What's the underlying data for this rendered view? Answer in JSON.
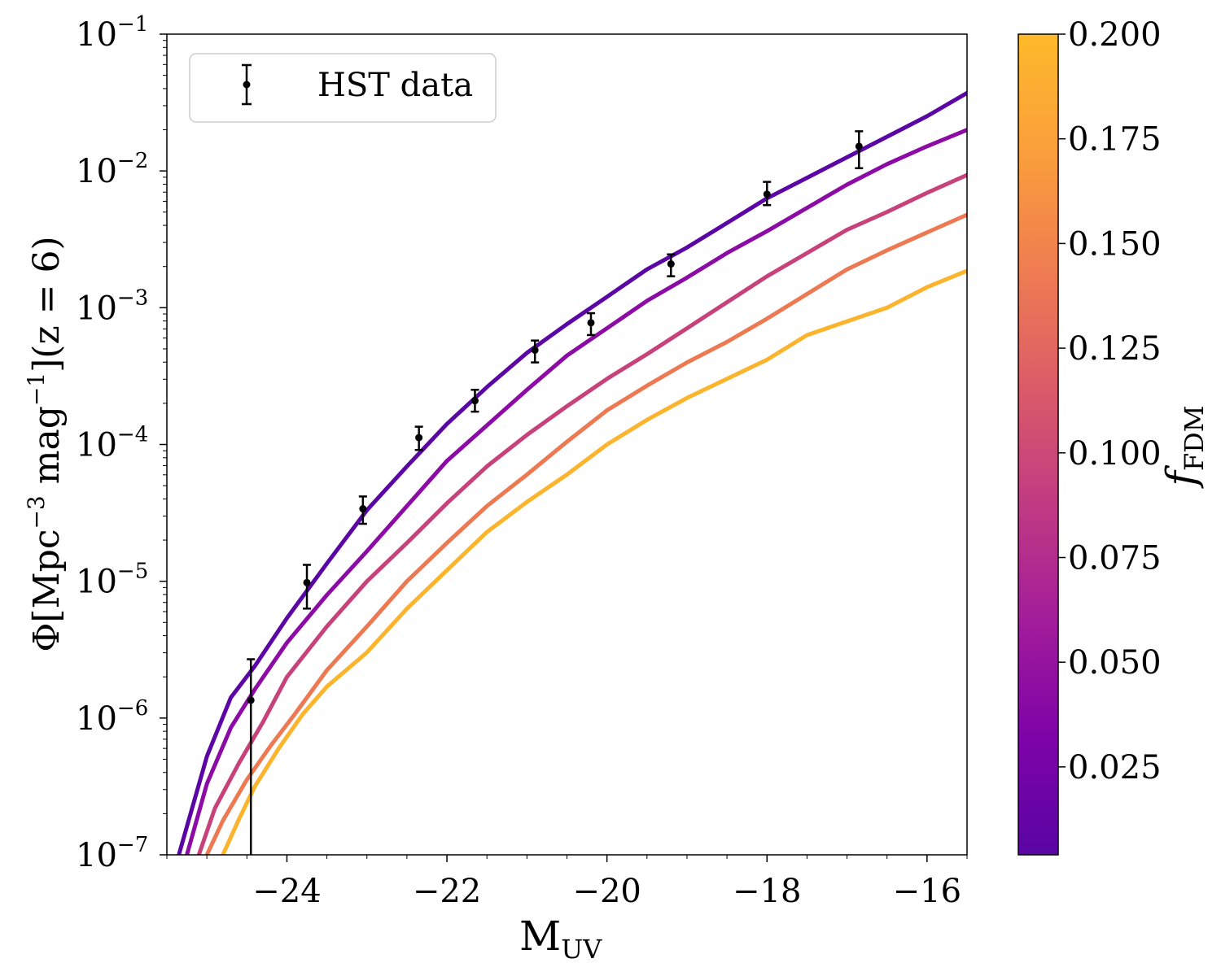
{
  "chart_data": {
    "type": "line",
    "xlabel": "M",
    "xlabel_sub": "UV",
    "ylabel_parts": {
      "pre": "Φ[Mpc",
      "sup1": "−3",
      "mid": " mag",
      "sup2": "−1",
      "post": "](z = 6)"
    },
    "xlim": [
      -25.5,
      -15.5
    ],
    "ylim_log10": [
      -7,
      -1
    ],
    "x_ticks": [
      -24,
      -22,
      -20,
      -18,
      -16
    ],
    "x_tick_labels": [
      "−24",
      "−22",
      "−20",
      "−18",
      "−16"
    ],
    "y_ticks_log10": [
      -7,
      -6,
      -5,
      -4,
      -3,
      -2,
      -1
    ],
    "y_tick_base": "10",
    "y_tick_exponents": [
      "−7",
      "−6",
      "−5",
      "−4",
      "−3",
      "−2",
      "−1"
    ],
    "legend": {
      "label": "HST data",
      "location": "upper-left"
    },
    "colorbar": {
      "label": "f",
      "label_sub": "FDM",
      "range": [
        0.004,
        0.2
      ],
      "ticks": [
        0.025,
        0.05,
        0.075,
        0.1,
        0.125,
        0.15,
        0.175,
        0.2
      ],
      "tick_labels": [
        "0.025",
        "0.050",
        "0.075",
        "0.100",
        "0.125",
        "0.150",
        "0.175",
        "0.200"
      ],
      "colormap": [
        "#0d0887",
        "#5c01a6",
        "#9c179e",
        "#cc4778",
        "#ed7953",
        "#fdb42f",
        "#f0f921"
      ]
    },
    "series": [
      {
        "name": "f_FDM = 0.01",
        "color": "#5a05a4",
        "x": [
          -25.35,
          -25.0,
          -24.7,
          -24.4,
          -24.0,
          -23.5,
          -23.0,
          -22.5,
          -22.0,
          -21.5,
          -21.0,
          -20.5,
          -20.0,
          -19.5,
          -19.0,
          -18.5,
          -18.0,
          -17.5,
          -17.0,
          -16.5,
          -16.0,
          -15.5
        ],
        "y_log10": [
          -7.0,
          -6.28,
          -5.85,
          -5.62,
          -5.27,
          -4.87,
          -4.48,
          -4.16,
          -3.85,
          -3.58,
          -3.33,
          -3.12,
          -2.92,
          -2.72,
          -2.56,
          -2.38,
          -2.2,
          -2.05,
          -1.9,
          -1.75,
          -1.6,
          -1.43
        ]
      },
      {
        "name": "f_FDM = 0.05",
        "color": "#8c0ba5",
        "x": [
          -25.25,
          -25.0,
          -24.7,
          -24.4,
          -24.0,
          -23.5,
          -23.0,
          -22.5,
          -22.0,
          -21.5,
          -21.0,
          -20.5,
          -20.0,
          -19.5,
          -19.0,
          -18.5,
          -18.0,
          -17.5,
          -17.0,
          -16.5,
          -16.0,
          -15.5
        ],
        "y_log10": [
          -7.0,
          -6.48,
          -6.07,
          -5.79,
          -5.45,
          -5.1,
          -4.78,
          -4.45,
          -4.12,
          -3.86,
          -3.6,
          -3.35,
          -3.15,
          -2.95,
          -2.78,
          -2.6,
          -2.44,
          -2.27,
          -2.1,
          -1.95,
          -1.82,
          -1.7
        ]
      },
      {
        "name": "f_FDM = 0.10",
        "color": "#c7417b",
        "x": [
          -25.1,
          -24.9,
          -24.6,
          -24.3,
          -24.0,
          -23.5,
          -23.0,
          -22.5,
          -22.0,
          -21.5,
          -21.0,
          -20.5,
          -20.0,
          -19.5,
          -19.0,
          -18.5,
          -18.0,
          -17.5,
          -17.0,
          -16.5,
          -16.0,
          -15.5
        ],
        "y_log10": [
          -7.0,
          -6.66,
          -6.33,
          -6.03,
          -5.7,
          -5.33,
          -5.0,
          -4.72,
          -4.43,
          -4.16,
          -3.93,
          -3.72,
          -3.52,
          -3.34,
          -3.15,
          -2.96,
          -2.77,
          -2.6,
          -2.43,
          -2.3,
          -2.16,
          -2.03
        ]
      },
      {
        "name": "f_FDM = 0.15",
        "color": "#ed7953",
        "x": [
          -25.0,
          -24.8,
          -24.5,
          -24.2,
          -23.9,
          -23.5,
          -23.0,
          -22.5,
          -22.0,
          -21.5,
          -21.0,
          -20.5,
          -20.0,
          -19.5,
          -19.0,
          -18.5,
          -18.0,
          -17.5,
          -17.0,
          -16.5,
          -16.0,
          -15.5
        ],
        "y_log10": [
          -7.0,
          -6.75,
          -6.45,
          -6.2,
          -5.97,
          -5.65,
          -5.33,
          -5.0,
          -4.72,
          -4.45,
          -4.22,
          -3.98,
          -3.75,
          -3.57,
          -3.4,
          -3.25,
          -3.08,
          -2.9,
          -2.72,
          -2.58,
          -2.45,
          -2.32
        ]
      },
      {
        "name": "f_FDM = 0.20",
        "color": "#fcb42c",
        "x": [
          -24.8,
          -24.6,
          -24.4,
          -24.1,
          -23.8,
          -23.5,
          -23.0,
          -22.5,
          -22.0,
          -21.5,
          -21.0,
          -20.5,
          -20.0,
          -19.5,
          -19.0,
          -18.5,
          -18.0,
          -17.5,
          -17.0,
          -16.5,
          -16.0,
          -15.5
        ],
        "y_log10": [
          -7.0,
          -6.74,
          -6.5,
          -6.22,
          -5.97,
          -5.77,
          -5.52,
          -5.2,
          -4.92,
          -4.64,
          -4.42,
          -4.22,
          -4.0,
          -3.82,
          -3.66,
          -3.52,
          -3.38,
          -3.2,
          -3.1,
          -3.0,
          -2.85,
          -2.73
        ]
      }
    ],
    "hst_data": {
      "label": "HST data",
      "points": [
        {
          "x": -24.45,
          "y_log10": -5.87,
          "err_lo": -7.0,
          "err_hi": -5.57
        },
        {
          "x": -23.75,
          "y_log10": -5.01,
          "err_lo": -5.2,
          "err_hi": -4.88
        },
        {
          "x": -23.05,
          "y_log10": -4.47,
          "err_lo": -4.58,
          "err_hi": -4.38
        },
        {
          "x": -22.35,
          "y_log10": -3.95,
          "err_lo": -4.04,
          "err_hi": -3.87
        },
        {
          "x": -21.65,
          "y_log10": -3.68,
          "err_lo": -3.76,
          "err_hi": -3.6
        },
        {
          "x": -20.9,
          "y_log10": -3.31,
          "err_lo": -3.4,
          "err_hi": -3.24
        },
        {
          "x": -20.2,
          "y_log10": -3.11,
          "err_lo": -3.2,
          "err_hi": -3.04
        },
        {
          "x": -19.2,
          "y_log10": -2.68,
          "err_lo": -2.77,
          "err_hi": -2.61
        },
        {
          "x": -18.0,
          "y_log10": -2.17,
          "err_lo": -2.25,
          "err_hi": -2.08
        },
        {
          "x": -16.85,
          "y_log10": -1.82,
          "err_lo": -1.98,
          "err_hi": -1.71
        }
      ]
    }
  }
}
